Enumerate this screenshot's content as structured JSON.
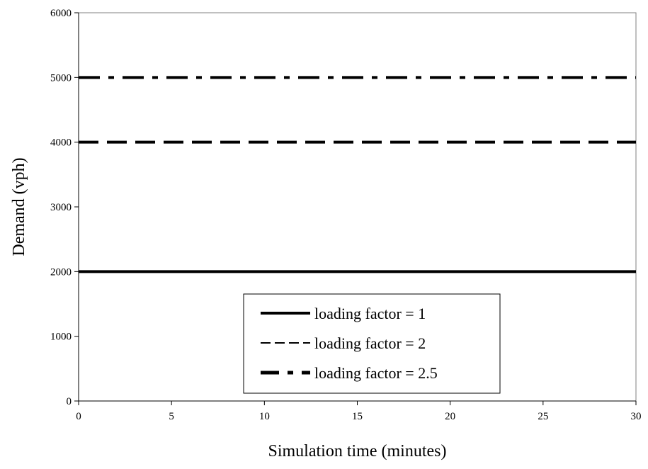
{
  "chart_data": {
    "type": "line",
    "title": "",
    "xlabel": "Simulation time (minutes)",
    "ylabel": "Demand (vph)",
    "xlim": [
      0,
      30
    ],
    "ylim": [
      0,
      6000
    ],
    "xticks": [
      0,
      5,
      10,
      15,
      20,
      25,
      30
    ],
    "yticks": [
      0,
      1000,
      2000,
      3000,
      4000,
      5000,
      6000
    ],
    "grid": false,
    "legend_position": "bottom-center",
    "series": [
      {
        "name": "loading factor = 1",
        "x": [
          0,
          30
        ],
        "y": [
          2000,
          2000
        ],
        "style": "solid",
        "color": "#000000"
      },
      {
        "name": "loading factor = 2",
        "x": [
          0,
          30
        ],
        "y": [
          4000,
          4000
        ],
        "style": "dashed",
        "color": "#000000"
      },
      {
        "name": "loading factor = 2.5",
        "x": [
          0,
          30
        ],
        "y": [
          5000,
          5000
        ],
        "style": "dash-dot",
        "color": "#000000"
      }
    ]
  }
}
